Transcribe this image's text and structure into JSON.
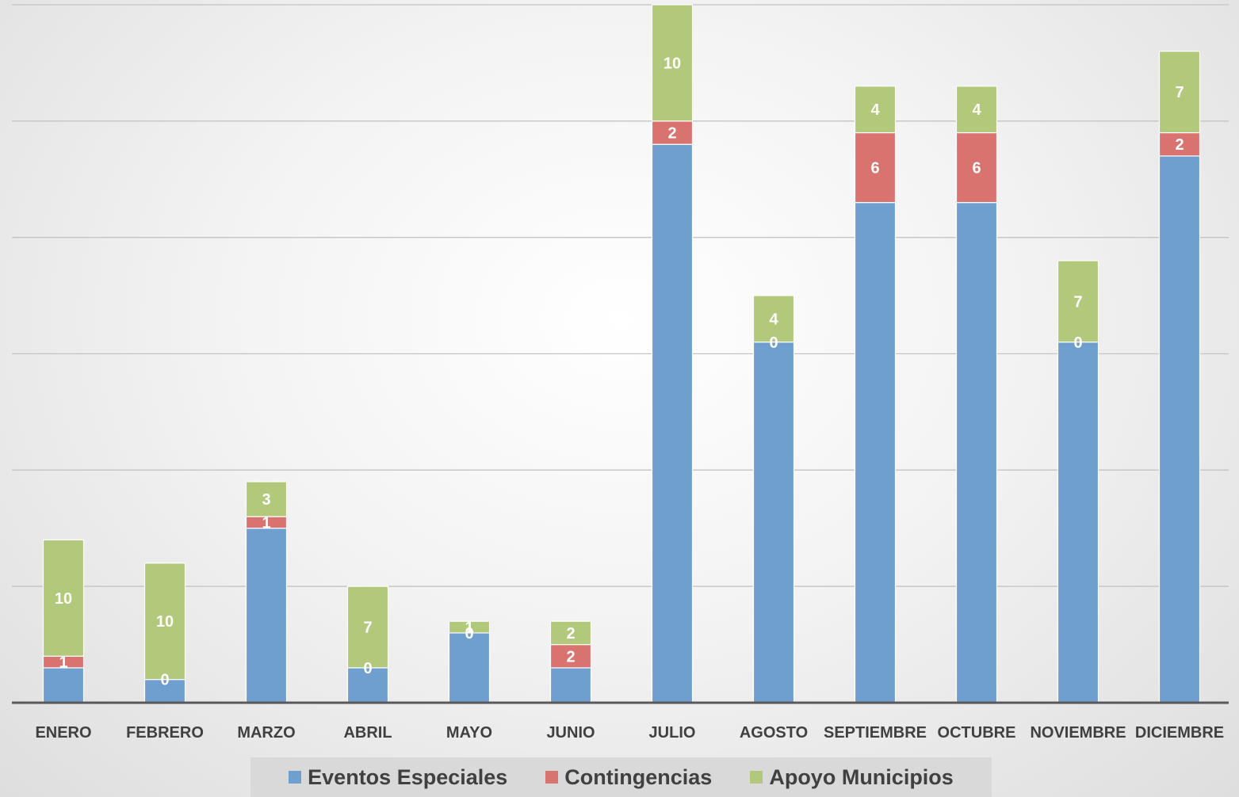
{
  "chart_data": {
    "type": "bar",
    "stacked": true,
    "title": "",
    "xlabel": "",
    "ylabel": "",
    "ylim": [
      0,
      60
    ],
    "grid": true,
    "legend_position": "bottom",
    "categories": [
      "ENERO",
      "FEBRERO",
      "MARZO",
      "ABRIL",
      "MAYO",
      "JUNIO",
      "JULIO",
      "AGOSTO",
      "SEPTIEMBRE",
      "OCTUBRE",
      "NOVIEMBRE",
      "DICIEMBRE"
    ],
    "series": [
      {
        "name": "Eventos Especiales",
        "color": "#6f9fcf",
        "values": [
          3,
          2,
          15,
          3,
          6,
          3,
          48,
          31,
          43,
          43,
          31,
          47
        ],
        "labels": [
          "",
          "",
          "",
          "",
          "",
          "",
          "",
          "",
          "",
          "",
          "",
          ""
        ]
      },
      {
        "name": "Contingencias",
        "color": "#d9736f",
        "values": [
          1,
          0,
          1,
          0,
          0,
          2,
          2,
          0,
          6,
          6,
          0,
          2
        ],
        "labels": [
          "1",
          "0",
          "1",
          "0",
          "0",
          "2",
          "2",
          "0",
          "6",
          "6",
          "0",
          "2"
        ]
      },
      {
        "name": "Apoyo Municipios",
        "color": "#b2c97c",
        "values": [
          10,
          10,
          3,
          7,
          1,
          2,
          10,
          4,
          4,
          4,
          7,
          7
        ],
        "labels": [
          "10",
          "10",
          "3",
          "7",
          "1",
          "2",
          "10",
          "4",
          "4",
          "4",
          "7",
          "7"
        ]
      }
    ]
  }
}
